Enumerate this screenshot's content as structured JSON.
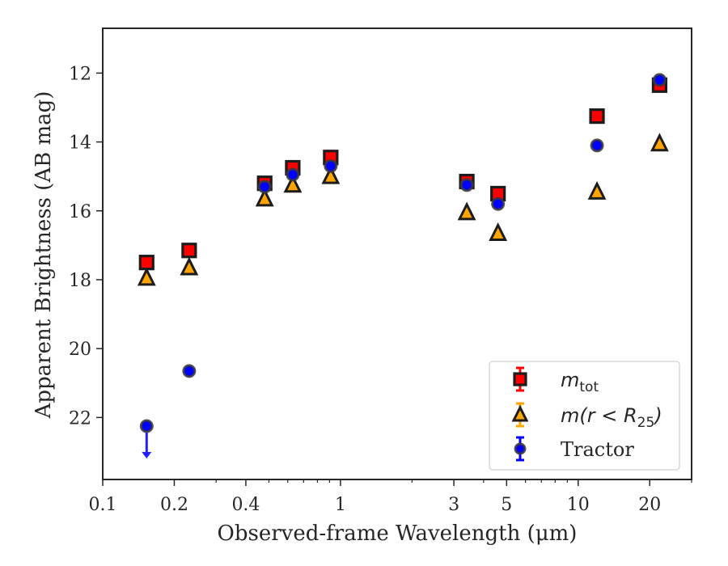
{
  "chart_data": {
    "type": "scatter",
    "xlabel": "Observed-frame Wavelength (μm)",
    "ylabel": "Apparent Brightness (AB mag)",
    "x_scale": "log",
    "xlim": [
      0.1,
      30
    ],
    "ylim": [
      23.8,
      10.7
    ],
    "y_inverted": true,
    "grid": false,
    "legend_position": "lower-right",
    "x_ticks": [
      {
        "value": 0.1,
        "label": "0.1"
      },
      {
        "value": 0.2,
        "label": "0.2"
      },
      {
        "value": 0.4,
        "label": "0.4"
      },
      {
        "value": 1,
        "label": "1"
      },
      {
        "value": 3,
        "label": "3"
      },
      {
        "value": 5,
        "label": "5"
      },
      {
        "value": 10,
        "label": "10"
      },
      {
        "value": 20,
        "label": "20"
      }
    ],
    "y_ticks": [
      {
        "value": 12,
        "label": "12"
      },
      {
        "value": 14,
        "label": "14"
      },
      {
        "value": 16,
        "label": "16"
      },
      {
        "value": 18,
        "label": "18"
      },
      {
        "value": 20,
        "label": "20"
      },
      {
        "value": 22,
        "label": "22"
      }
    ],
    "series": [
      {
        "key": "mtot",
        "legend_main": "m",
        "legend_sub": "tot",
        "marker": "square",
        "color": "#ff0000",
        "points": [
          {
            "x": 0.153,
            "y": 17.5
          },
          {
            "x": 0.231,
            "y": 17.15
          },
          {
            "x": 0.48,
            "y": 15.2
          },
          {
            "x": 0.63,
            "y": 14.75
          },
          {
            "x": 0.91,
            "y": 14.45
          },
          {
            "x": 3.4,
            "y": 15.15
          },
          {
            "x": 4.6,
            "y": 15.5
          },
          {
            "x": 12.0,
            "y": 13.25
          },
          {
            "x": 22.0,
            "y": 12.35
          }
        ]
      },
      {
        "key": "mr25",
        "legend_main": "m",
        "legend_open": "(r < R",
        "legend_sub": "25",
        "legend_close": ")",
        "marker": "triangle",
        "color": "#ffa500",
        "points": [
          {
            "x": 0.153,
            "y": 17.95
          },
          {
            "x": 0.231,
            "y": 17.65
          },
          {
            "x": 0.48,
            "y": 15.65
          },
          {
            "x": 0.63,
            "y": 15.25
          },
          {
            "x": 0.91,
            "y": 15.0
          },
          {
            "x": 3.4,
            "y": 16.05
          },
          {
            "x": 4.6,
            "y": 16.65
          },
          {
            "x": 12.0,
            "y": 15.45
          },
          {
            "x": 22.0,
            "y": 14.05
          }
        ]
      },
      {
        "key": "tractor",
        "legend_label": "Tractor",
        "marker": "circle",
        "color": "#0000ff",
        "points": [
          {
            "x": 0.153,
            "y": 22.25,
            "upper_limit": true
          },
          {
            "x": 0.231,
            "y": 20.65
          },
          {
            "x": 0.48,
            "y": 15.3
          },
          {
            "x": 0.63,
            "y": 14.95
          },
          {
            "x": 0.91,
            "y": 14.7
          },
          {
            "x": 3.4,
            "y": 15.25
          },
          {
            "x": 4.6,
            "y": 15.8
          },
          {
            "x": 12.0,
            "y": 14.1
          },
          {
            "x": 22.0,
            "y": 12.2
          }
        ]
      }
    ]
  }
}
